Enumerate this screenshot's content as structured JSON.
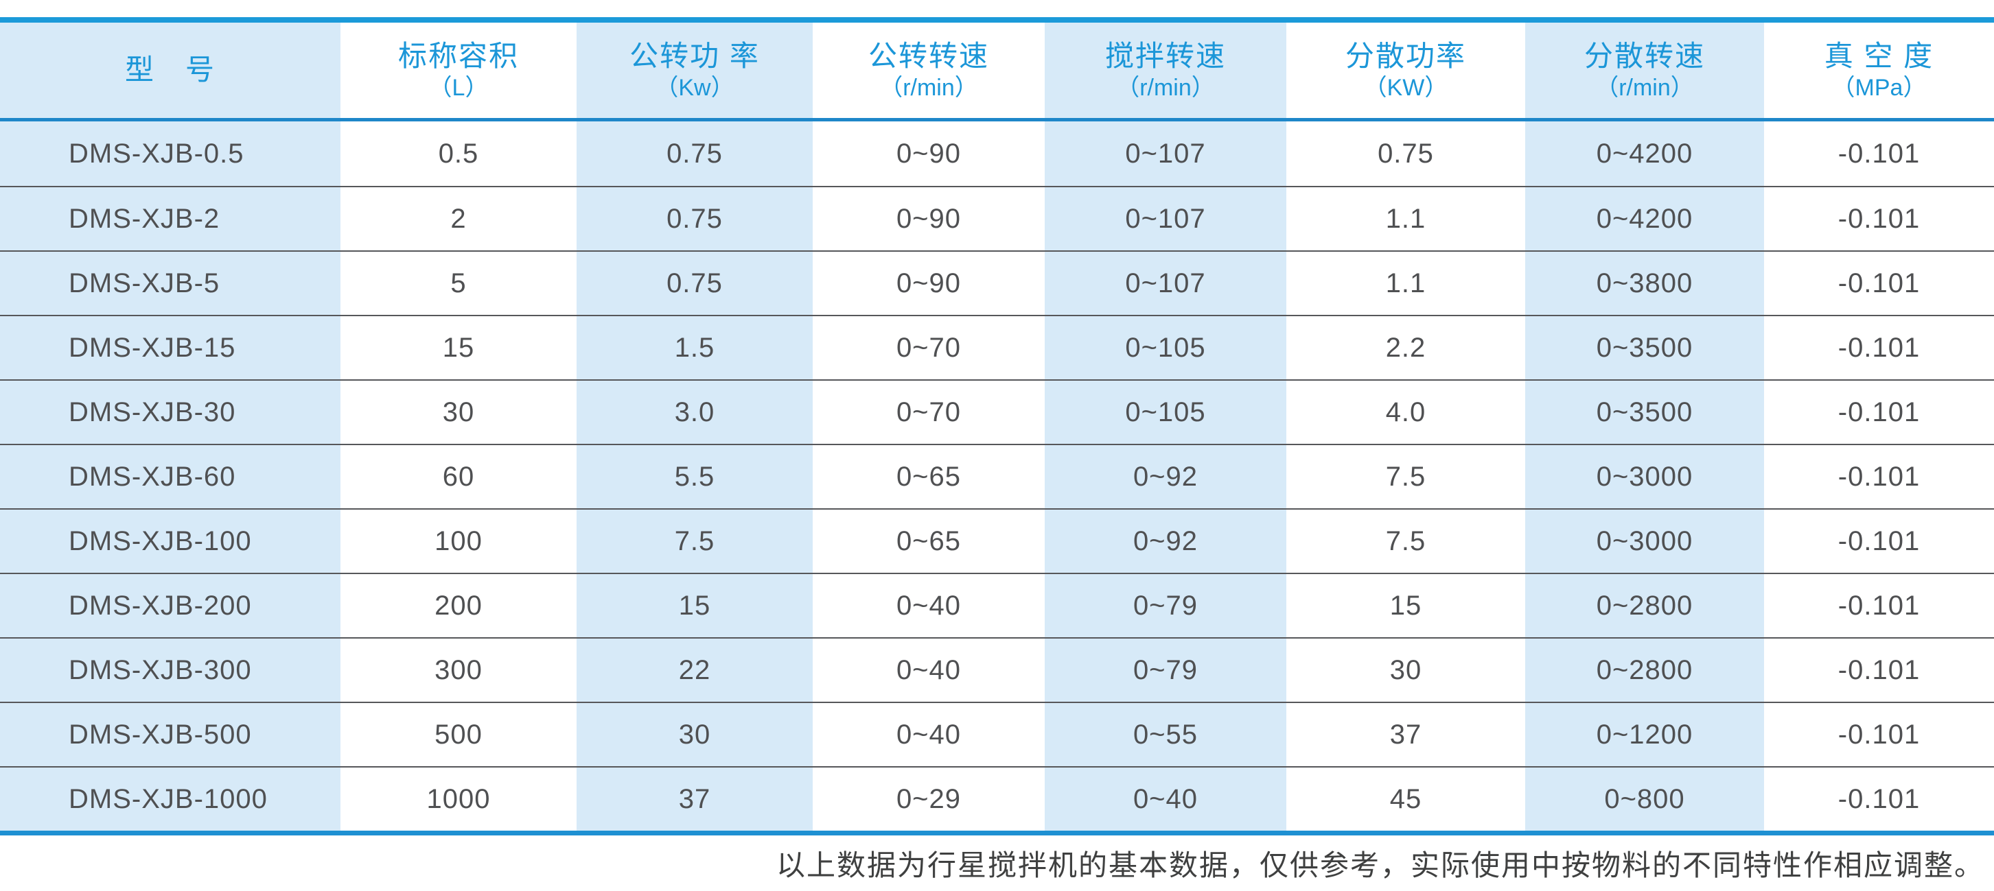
{
  "table": {
    "columns": [
      {
        "label": "型　号",
        "unit": ""
      },
      {
        "label": "标称容积",
        "unit": "（L）"
      },
      {
        "label": "公转功 率",
        "unit": "（Kw）"
      },
      {
        "label": "公转转速",
        "unit": "（r/min）"
      },
      {
        "label": "搅拌转速",
        "unit": "（r/min）"
      },
      {
        "label": "分散功率",
        "unit": "（KW）"
      },
      {
        "label": "分散转速",
        "unit": "（r/min）"
      },
      {
        "label": "真 空 度",
        "unit": "（MPa）"
      }
    ],
    "rows": [
      [
        "DMS-XJB-0.5",
        "0.5",
        "0.75",
        "0~90",
        "0~107",
        "0.75",
        "0~4200",
        "-0.101"
      ],
      [
        "DMS-XJB-2",
        "2",
        "0.75",
        "0~90",
        "0~107",
        "1.1",
        "0~4200",
        "-0.101"
      ],
      [
        "DMS-XJB-5",
        "5",
        "0.75",
        "0~90",
        "0~107",
        "1.1",
        "0~3800",
        "-0.101"
      ],
      [
        "DMS-XJB-15",
        "15",
        "1.5",
        "0~70",
        "0~105",
        "2.2",
        "0~3500",
        "-0.101"
      ],
      [
        "DMS-XJB-30",
        "30",
        "3.0",
        "0~70",
        "0~105",
        "4.0",
        "0~3500",
        "-0.101"
      ],
      [
        "DMS-XJB-60",
        "60",
        "5.5",
        "0~65",
        "0~92",
        "7.5",
        "0~3000",
        "-0.101"
      ],
      [
        "DMS-XJB-100",
        "100",
        "7.5",
        "0~65",
        "0~92",
        "7.5",
        "0~3000",
        "-0.101"
      ],
      [
        "DMS-XJB-200",
        "200",
        "15",
        "0~40",
        "0~79",
        "15",
        "0~2800",
        "-0.101"
      ],
      [
        "DMS-XJB-300",
        "300",
        "22",
        "0~40",
        "0~79",
        "30",
        "0~2800",
        "-0.101"
      ],
      [
        "DMS-XJB-500",
        "500",
        "30",
        "0~40",
        "0~55",
        "37",
        "0~1200",
        "-0.101"
      ],
      [
        "DMS-XJB-1000",
        "1000",
        "37",
        "0~29",
        "0~40",
        "45",
        "0~800",
        "-0.101"
      ]
    ]
  },
  "footer": {
    "note": "以上数据为行星搅拌机的基本数据，仅供参考，实际使用中按物料的不同特性作相应调整。"
  },
  "colors": {
    "border_top": "#1b9ad9",
    "border_header": "#1e87c9",
    "border_bottom": "#1e90d2",
    "stripe_blue": "#d7eaf8",
    "header_text": "#1b96d8",
    "data_text": "#4f5052",
    "row_separator": "#56575a",
    "note_text": "#3f4040"
  }
}
